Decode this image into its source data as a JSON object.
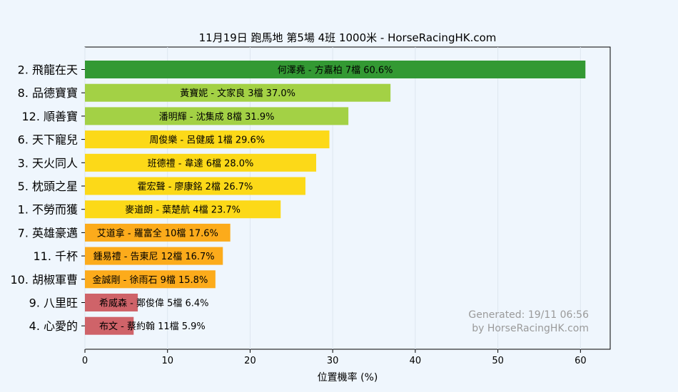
{
  "chart_data": {
    "type": "bar",
    "orientation": "horizontal",
    "title": "11月19日  跑馬地  第5場  4班  1000米 - HorseRacingHK.com",
    "xlabel": "位置機率 (%)",
    "ylabel": "",
    "xlim": [
      0,
      63.6
    ],
    "xticks": [
      0,
      10,
      20,
      30,
      40,
      50,
      60
    ],
    "grid": true,
    "categories": [
      "2. 飛龍在天",
      "8. 品德寶寶",
      "12. 順善寶",
      "6. 天下寵兒",
      "3. 天火同人",
      "5. 枕頭之星",
      "1. 不勞而獲",
      "7. 英雄豪邁",
      "11. 千杯",
      "10. 胡椒軍曹",
      "9. 八里旺",
      "4. 心愛的"
    ],
    "values": [
      60.6,
      37.0,
      31.9,
      29.6,
      28.0,
      26.7,
      23.7,
      17.6,
      16.7,
      15.8,
      6.4,
      5.9
    ],
    "bar_labels": [
      "何澤堯 - 方嘉柏 7檔  60.6%",
      "黃寶妮 - 文家良 3檔  37.0%",
      "潘明輝 - 沈集成 8檔  31.9%",
      "周俊樂 - 呂健威 1檔  29.6%",
      "班德禮 - 韋達 6檔  28.0%",
      "霍宏聲 - 廖康銘 2檔  26.7%",
      "麥道朗 - 葉楚航 4檔  23.7%",
      "艾道拿 - 羅富全 10檔  17.6%",
      "鍾易禮 - 告東尼 12檔  16.7%",
      "金誠剛 - 徐雨石 9檔  15.8%",
      "希威森 - 鄭俊偉 5檔  6.4%",
      "布文 - 蔡約翰 11檔  5.9%"
    ],
    "colors": [
      "#339933",
      "#a3d145",
      "#a3d145",
      "#fcd918",
      "#fcd918",
      "#fcd918",
      "#fcd918",
      "#fcab1b",
      "#fcab1b",
      "#fcab1b",
      "#cf6369",
      "#cf6369"
    ],
    "watermark": [
      "Generated: 19/11 06:56",
      "by HorseRacingHK.com"
    ]
  }
}
